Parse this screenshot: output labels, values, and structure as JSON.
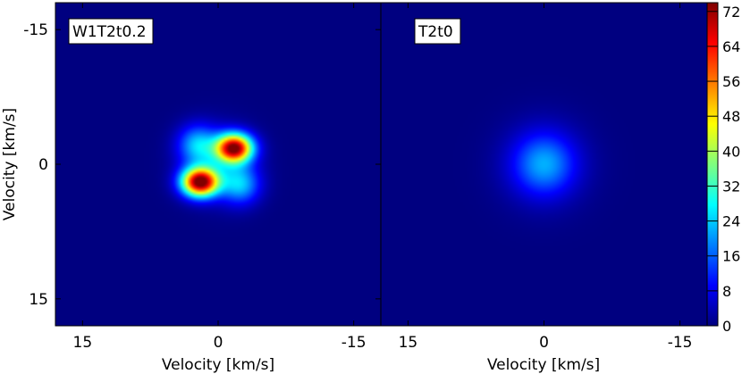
{
  "chart_data": {
    "type": "heatmap",
    "colormap": "jet",
    "panels": [
      {
        "label": "W1T2t0.2",
        "xlabel": "Velocity [km/s]",
        "ylabel": "Velocity [km/s]",
        "xlim": [
          18,
          -18
        ],
        "ylim": [
          -18,
          18
        ],
        "xticks": [
          15,
          0,
          -15
        ],
        "yticks": [
          -15,
          0,
          15
        ],
        "blobs": [
          {
            "x": 2.0,
            "y": 2.0,
            "peak": 73,
            "sx": 1.4,
            "sy": 1.1
          },
          {
            "x": -1.8,
            "y": -1.8,
            "peak": 70,
            "sx": 1.4,
            "sy": 1.1
          },
          {
            "x": -2.5,
            "y": 2.3,
            "peak": 20,
            "sx": 1.5,
            "sy": 1.5
          },
          {
            "x": 2.3,
            "y": -2.2,
            "peak": 20,
            "sx": 1.5,
            "sy": 1.5
          },
          {
            "x": 0.0,
            "y": 0.0,
            "peak": 12,
            "sx": 2.6,
            "sy": 2.6
          }
        ]
      },
      {
        "label": "T2t0",
        "xlabel": "Velocity [km/s]",
        "xlim": [
          18,
          -18
        ],
        "ylim": [
          -18,
          18
        ],
        "xticks": [
          15,
          0,
          -15
        ],
        "blobs": [
          {
            "x": 0.0,
            "y": 0.0,
            "peak": 16,
            "sx": 2.3,
            "sy": 2.3
          },
          {
            "x": 0.0,
            "y": 0.0,
            "peak": 6,
            "sx": 3.4,
            "sy": 3.4
          }
        ]
      }
    ],
    "colorbar": {
      "min": 0,
      "max": 74,
      "ticks": [
        0,
        8,
        16,
        24,
        32,
        40,
        48,
        56,
        64,
        72
      ]
    }
  }
}
